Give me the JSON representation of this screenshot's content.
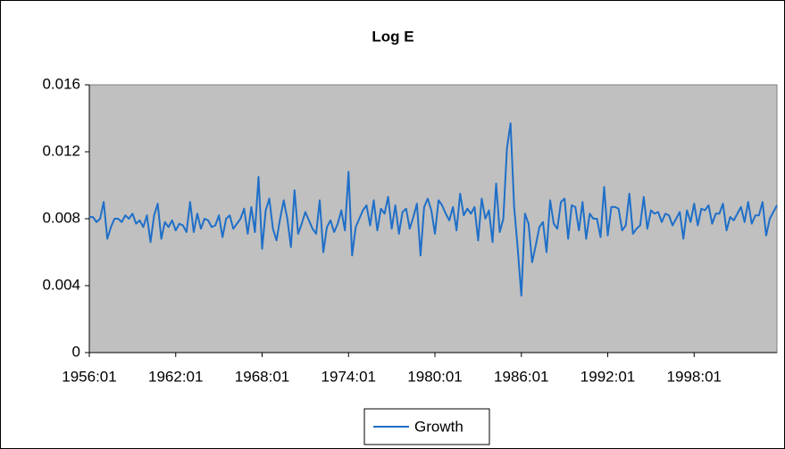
{
  "chart_data": {
    "type": "line",
    "title": "Log E",
    "categories": [
      "1956:01",
      null,
      null,
      null,
      null,
      null,
      null,
      null,
      null,
      null,
      null,
      null,
      null,
      null,
      null,
      null,
      null,
      null,
      null,
      null,
      null,
      null,
      null,
      null,
      "1962:01",
      null,
      null,
      null,
      null,
      null,
      null,
      null,
      null,
      null,
      null,
      null,
      null,
      null,
      null,
      null,
      null,
      null,
      null,
      null,
      null,
      null,
      null,
      null,
      "1968:01",
      null,
      null,
      null,
      null,
      null,
      null,
      null,
      null,
      null,
      null,
      null,
      null,
      null,
      null,
      null,
      null,
      null,
      null,
      null,
      null,
      null,
      null,
      null,
      "1974:01",
      null,
      null,
      null,
      null,
      null,
      null,
      null,
      null,
      null,
      null,
      null,
      null,
      null,
      null,
      null,
      null,
      null,
      null,
      null,
      null,
      null,
      null,
      null,
      "1980:01",
      null,
      null,
      null,
      null,
      null,
      null,
      null,
      null,
      null,
      null,
      null,
      null,
      null,
      null,
      null,
      null,
      null,
      null,
      null,
      null,
      null,
      null,
      null,
      "1986:01",
      null,
      null,
      null,
      null,
      null,
      null,
      null,
      null,
      null,
      null,
      null,
      null,
      null,
      null,
      null,
      null,
      null,
      null,
      null,
      null,
      null,
      null,
      null,
      "1992:01",
      null,
      null,
      null,
      null,
      null,
      null,
      null,
      null,
      null,
      null,
      null,
      null,
      null,
      null,
      null,
      null,
      null,
      null,
      null,
      null,
      null,
      null,
      null,
      "1998:01",
      null,
      null,
      null,
      null,
      null,
      null,
      null,
      null,
      null,
      null,
      null,
      null,
      null,
      null,
      null,
      null,
      null,
      null,
      null,
      null,
      null,
      null,
      null
    ],
    "series": [
      {
        "name": "Growth",
        "color": "#1f6fc8",
        "values": [
          0.0081,
          0.0081,
          0.0078,
          0.008,
          0.009,
          0.0068,
          0.0075,
          0.008,
          0.008,
          0.0078,
          0.0082,
          0.008,
          0.0083,
          0.0077,
          0.0079,
          0.0075,
          0.0082,
          0.0066,
          0.0082,
          0.0089,
          0.0068,
          0.0078,
          0.0075,
          0.0079,
          0.0073,
          0.0077,
          0.0076,
          0.0072,
          0.009,
          0.0072,
          0.0083,
          0.0074,
          0.008,
          0.0079,
          0.0075,
          0.0076,
          0.0082,
          0.0069,
          0.008,
          0.0082,
          0.0074,
          0.0077,
          0.008,
          0.0086,
          0.0071,
          0.0087,
          0.0072,
          0.0105,
          0.0062,
          0.0085,
          0.0092,
          0.0074,
          0.0067,
          0.008,
          0.0091,
          0.008,
          0.0063,
          0.0097,
          0.0071,
          0.0077,
          0.0084,
          0.0079,
          0.0074,
          0.0071,
          0.0091,
          0.006,
          0.0075,
          0.0079,
          0.0072,
          0.0077,
          0.0085,
          0.0073,
          0.0108,
          0.0058,
          0.0075,
          0.008,
          0.0085,
          0.0088,
          0.0076,
          0.0091,
          0.0073,
          0.0086,
          0.0083,
          0.0093,
          0.0074,
          0.0088,
          0.0071,
          0.0084,
          0.0086,
          0.0074,
          0.0081,
          0.0089,
          0.0058,
          0.0087,
          0.0092,
          0.0085,
          0.0071,
          0.0091,
          0.0088,
          0.0083,
          0.0079,
          0.0087,
          0.0073,
          0.0095,
          0.0082,
          0.0086,
          0.0083,
          0.0087,
          0.0067,
          0.0092,
          0.008,
          0.0085,
          0.0066,
          0.0101,
          0.0072,
          0.008,
          0.0122,
          0.0137,
          0.0087,
          0.0062,
          0.0034,
          0.0083,
          0.0077,
          0.0054,
          0.0064,
          0.0075,
          0.0078,
          0.006,
          0.0091,
          0.0077,
          0.0074,
          0.009,
          0.0092,
          0.0068,
          0.0088,
          0.0087,
          0.0073,
          0.009,
          0.0068,
          0.0083,
          0.008,
          0.008,
          0.0069,
          0.0099,
          0.007,
          0.0087,
          0.0087,
          0.0086,
          0.0073,
          0.0076,
          0.0095,
          0.0071,
          0.0074,
          0.0076,
          0.0093,
          0.0074,
          0.0085,
          0.0083,
          0.0084,
          0.0078,
          0.0083,
          0.0082,
          0.0076,
          0.008,
          0.0084,
          0.0068,
          0.0085,
          0.0078,
          0.0089,
          0.0076,
          0.0086,
          0.0085,
          0.0088,
          0.0077,
          0.0083,
          0.0083,
          0.0089,
          0.0073,
          0.0081,
          0.0079,
          0.0083,
          0.0087,
          0.0078,
          0.009,
          0.0077,
          0.0082,
          0.0082,
          0.009,
          0.007,
          0.008,
          0.0084,
          0.0088
        ]
      }
    ],
    "ylim": [
      0,
      0.016
    ],
    "yticks": [
      0,
      0.004,
      0.008,
      0.012,
      0.016
    ],
    "legend": "bottom"
  }
}
